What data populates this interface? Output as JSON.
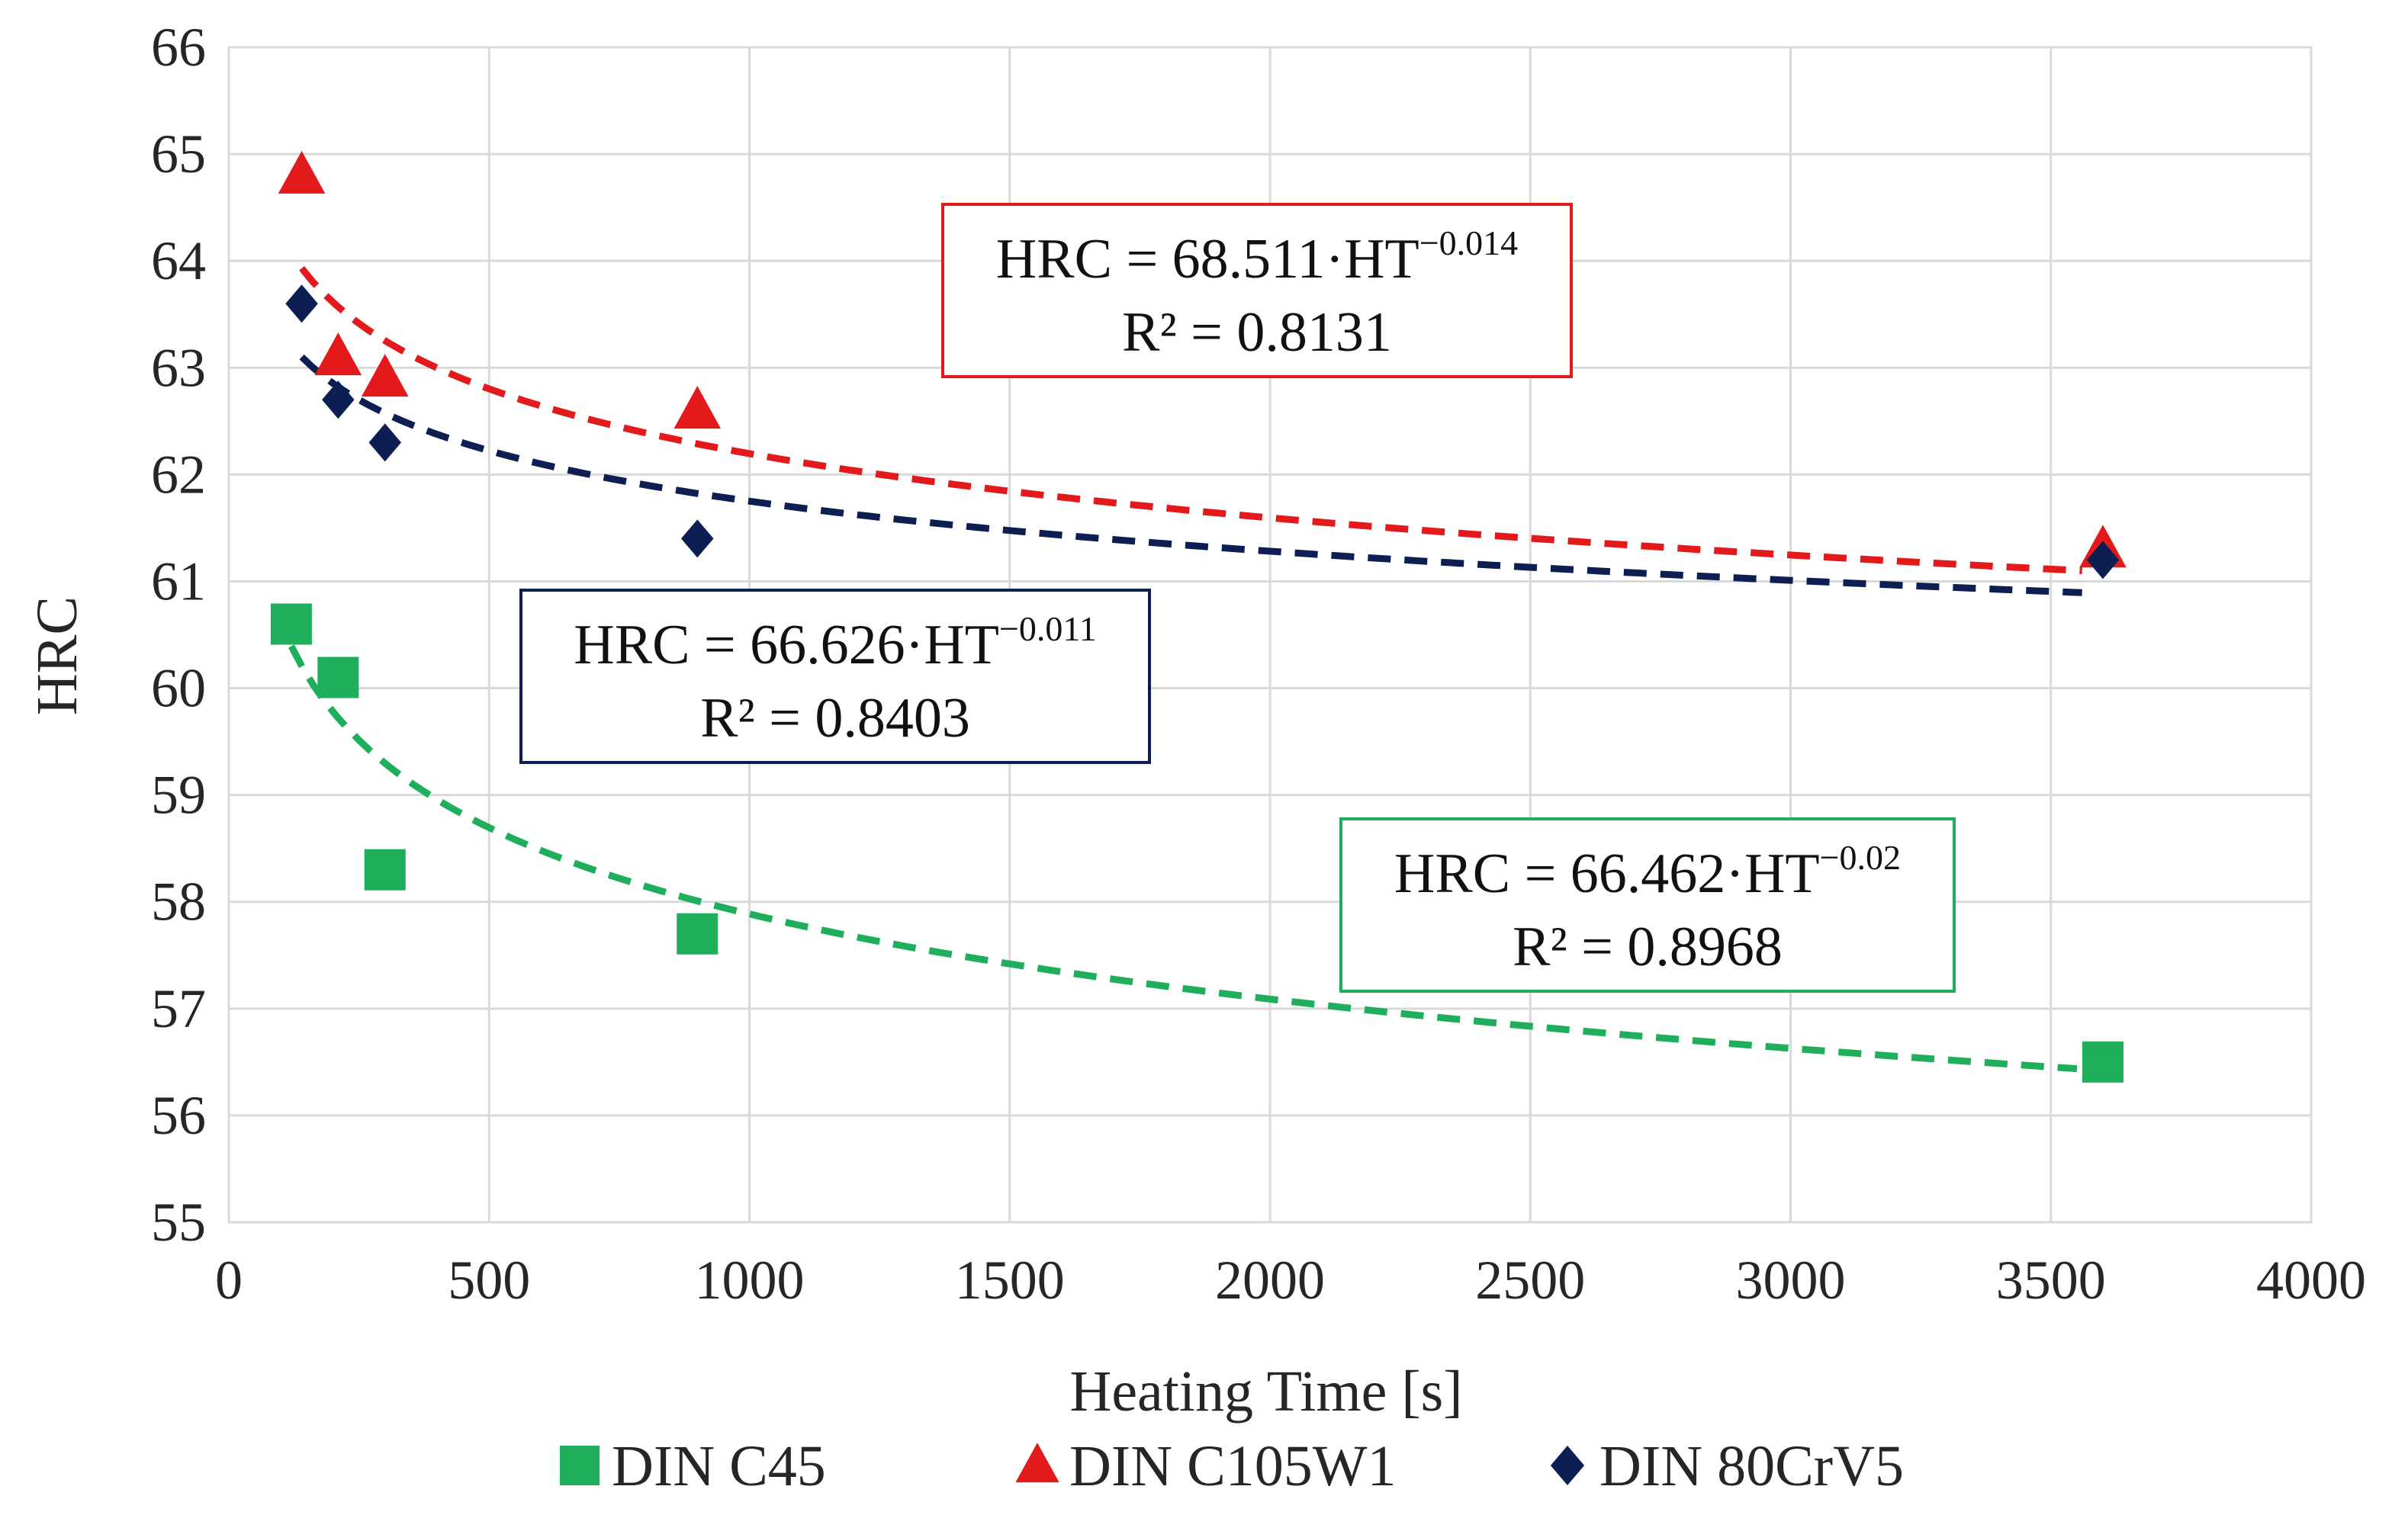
{
  "chart_data": {
    "type": "scatter",
    "xlabel": "Heating Time [s]",
    "ylabel": "HRC",
    "xlim": [
      0,
      4000
    ],
    "ylim": [
      55,
      66
    ],
    "xticks": [
      0,
      500,
      1000,
      1500,
      2000,
      2500,
      3000,
      3500,
      4000
    ],
    "yticks": [
      55,
      56,
      57,
      58,
      59,
      60,
      61,
      62,
      63,
      64,
      65,
      66
    ],
    "grid": true,
    "legend_position": "bottom",
    "series": [
      {
        "name": "DIN C45",
        "color": "#1fae5b",
        "marker": "square",
        "x": [
          120,
          210,
          300,
          900,
          3600
        ],
        "y": [
          60.6,
          60.1,
          58.3,
          57.7,
          56.5
        ],
        "trend": {
          "a": 66.462,
          "b": -0.02,
          "x_from": 120,
          "x_to": 3550
        },
        "equation": {
          "main": "HRC = 66.462·HT",
          "exponent": "−0.02",
          "r2": "R² = 0.8968"
        }
      },
      {
        "name": "DIN C105W1",
        "color": "#e31a1c",
        "marker": "triangle",
        "x": [
          140,
          210,
          300,
          900,
          3600
        ],
        "y": [
          64.8,
          63.1,
          62.9,
          62.6,
          61.3
        ],
        "trend": {
          "a": 68.511,
          "b": -0.014,
          "x_from": 140,
          "x_to": 3560
        },
        "equation": {
          "main": "HRC = 68.511·HT",
          "exponent": "−0.014",
          "r2": "R² = 0.8131"
        }
      },
      {
        "name": "DIN 80CrV5",
        "color": "#0d1f52",
        "marker": "diamond",
        "x": [
          140,
          210,
          300,
          900,
          3600
        ],
        "y": [
          63.6,
          62.7,
          62.3,
          61.4,
          61.2
        ],
        "trend": {
          "a": 66.626,
          "b": -0.011,
          "x_from": 140,
          "x_to": 3560
        },
        "equation": {
          "main": "HRC = 66.626·HT",
          "exponent": "−0.011",
          "r2": "R² = 0.8403"
        }
      }
    ]
  }
}
